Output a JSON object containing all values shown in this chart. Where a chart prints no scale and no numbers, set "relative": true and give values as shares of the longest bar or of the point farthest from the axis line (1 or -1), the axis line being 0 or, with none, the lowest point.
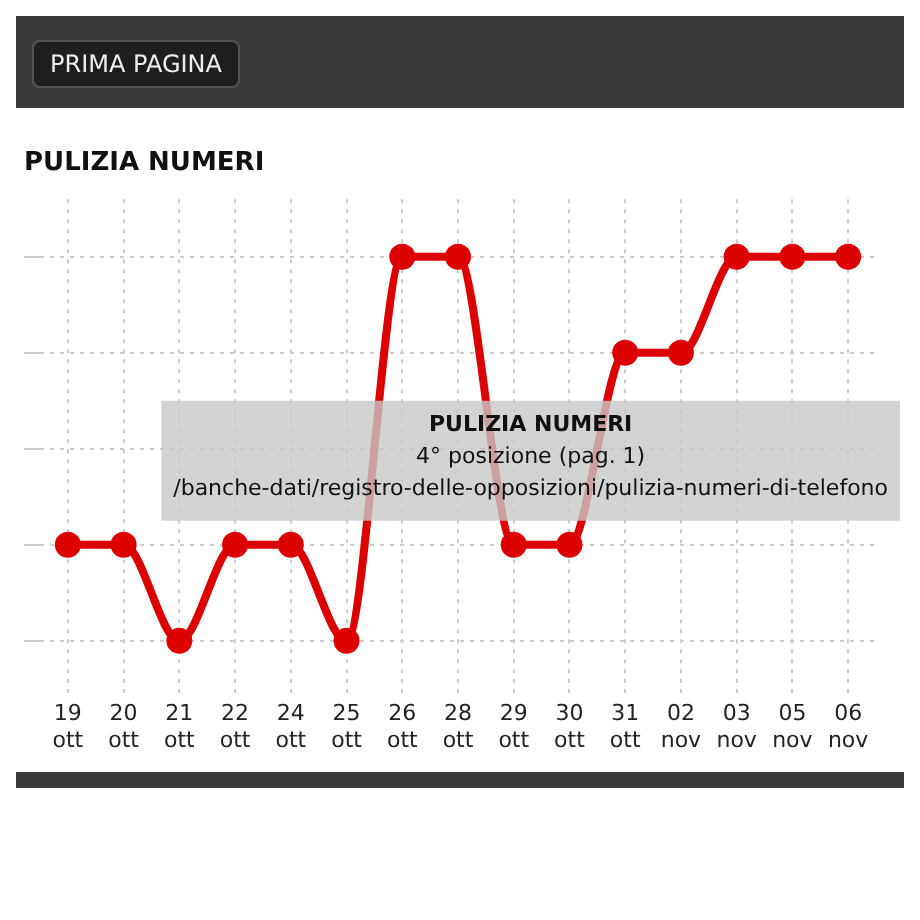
{
  "chart_data": {
    "type": "line",
    "title": "PULIZIA NUMERI",
    "categories": [
      "19 ott",
      "20 ott",
      "21 ott",
      "22 ott",
      "24 ott",
      "25 ott",
      "26 ott",
      "28 ott",
      "29 ott",
      "30 ott",
      "31 ott",
      "02 nov",
      "03 nov",
      "05 nov",
      "06 nov"
    ],
    "series": [
      {
        "color": "#dd0000",
        "values": [
          0.25,
          0.25,
          0,
          0.25,
          0.25,
          0,
          1,
          1,
          0.25,
          0.25,
          0.75,
          0.75,
          1,
          1,
          1
        ]
      }
    ],
    "relative": true,
    "grid": true,
    "legend": false,
    "marker": "circle",
    "line_style": "solid",
    "annotations": [
      "PRIMA PAGINA",
      {
        "text": "PULIZIA NUMERI\n4° posizione (pag. 1)\n/banche-dati/registro-delle-opposizioni/pulizia-numeri-di-telefono",
        "x": "30 ott",
        "y": 0.25
      }
    ]
  }
}
